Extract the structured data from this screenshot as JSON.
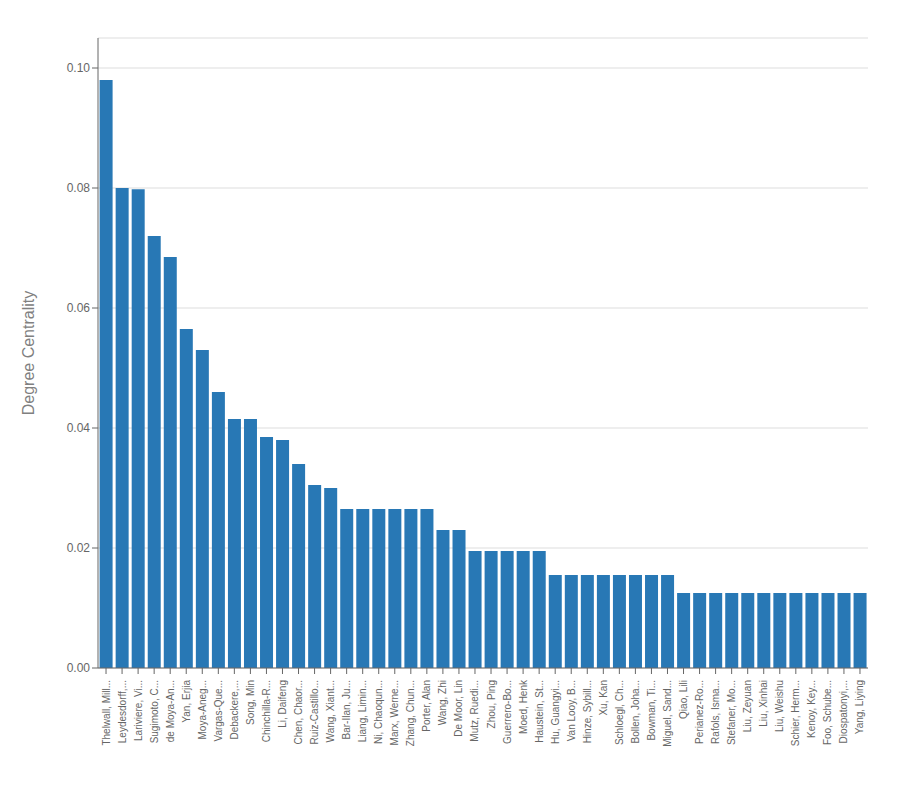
{
  "chart_data": {
    "type": "bar",
    "categories": [
      "Thelwall, Mill...",
      "Leydesdorff,...",
      "Lariviere, Vi...",
      "Sugimoto, C...",
      "de Moya-An...",
      "Yan, Erjia",
      "Moya-Aneg...",
      "Vargas-Que...",
      "Debackere,...",
      "Song, Min",
      "Chinchilla-R...",
      "Li, Daifeng",
      "Chen, Chaor...",
      "Ruiz-Castillo...",
      "Wang, Xiant...",
      "Bar-Ilan, Ju...",
      "Liang, Limin...",
      "Ni, Chaoqun...",
      "Marx, Werne...",
      "Zhang, Chun...",
      "Porter, Alan",
      "Wang, Zhi",
      "De Moor, Lin",
      "Mutz, Ruedi...",
      "Zhou, Ping",
      "Guerrero-Bo...",
      "Moed, Henk",
      "Haustein, St...",
      "Hu, Guangyi...",
      "Van Looy, B...",
      "Hinze, Sybill...",
      "Xu, Kan",
      "Schloegl, Ch...",
      "Bollen, Joha...",
      "Bowman, Ti...",
      "Miguel, Sand...",
      "Qiao, Lili",
      "Perianez-Ro...",
      "Rafols, Isma...",
      "Stefaner, Mo...",
      "Liu, Zeyuan",
      "Liu, Xinhai",
      "Liu, Weishu",
      "Schier, Herm...",
      "Kenoy, Key...",
      "Foo, Schube...",
      "Diospatonyi,...",
      "Yang, Liying"
    ],
    "values": [
      0.098,
      0.08,
      0.0798,
      0.072,
      0.0685,
      0.0565,
      0.053,
      0.046,
      0.0415,
      0.0415,
      0.0385,
      0.038,
      0.034,
      0.0305,
      0.03,
      0.0265,
      0.0265,
      0.0265,
      0.0265,
      0.0265,
      0.0265,
      0.023,
      0.023,
      0.0195,
      0.0195,
      0.0195,
      0.0195,
      0.0195,
      0.0155,
      0.0155,
      0.0155,
      0.0155,
      0.0155,
      0.0155,
      0.0155,
      0.0155,
      0.0125,
      0.0125,
      0.0125,
      0.0125,
      0.0125,
      0.0125,
      0.0125,
      0.0125,
      0.0125,
      0.0125,
      0.0125,
      0.0125
    ],
    "color": "#2878b5",
    "ylabel": "Degree Centrality",
    "ylim": [
      0,
      0.105
    ],
    "yticks": [
      {
        "value": 0,
        "label": "0.00"
      },
      {
        "value": 0.02,
        "label": "0.02"
      },
      {
        "value": 0.04,
        "label": "0.04"
      },
      {
        "value": 0.06,
        "label": "0.06"
      },
      {
        "value": 0.08,
        "label": "0.08"
      },
      {
        "value": 0.1,
        "label": "0.10"
      }
    ],
    "grid": true
  }
}
